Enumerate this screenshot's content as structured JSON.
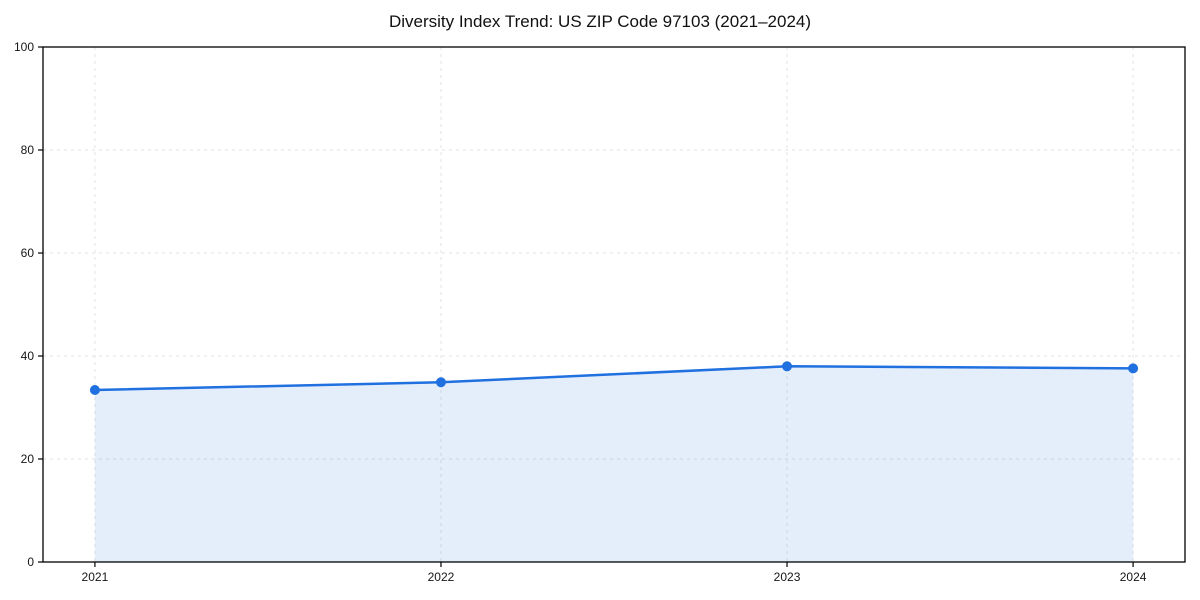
{
  "figure": {
    "background": "#ffffff"
  },
  "chart_data": {
    "type": "line",
    "title": "Diversity Index Trend: US ZIP Code 97103 (2021–2024)",
    "x": [
      2021,
      2022,
      2023,
      2024
    ],
    "xticks": [
      "2021",
      "2022",
      "2023",
      "2024"
    ],
    "yticks": [
      0,
      20,
      40,
      60,
      80,
      100
    ],
    "series": [
      {
        "name": "Diversity Index",
        "values": [
          33.4,
          34.9,
          38.0,
          37.6
        ]
      }
    ],
    "xlabel": "",
    "ylabel": "",
    "xlim": [
      2020.85,
      2024.15
    ],
    "ylim": [
      0,
      100
    ],
    "grid": true,
    "grid_style": "dashed",
    "legend": false,
    "colors": {
      "line": "#2070e0",
      "marker": "#2070e0",
      "area_fill": "rgba(32,112,224,0.12)",
      "grid": "#e2e2e2",
      "axis": "#000000",
      "text": "#161616"
    }
  }
}
